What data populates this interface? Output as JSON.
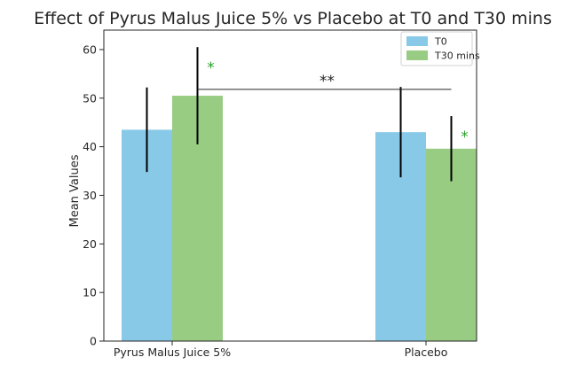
{
  "chart_data": {
    "type": "bar",
    "title": "Effect of Pyrus Malus Juice 5% vs Placebo at T0 and T30 mins",
    "xlabel": "",
    "ylabel": "Mean Values",
    "ylim": [
      0,
      64
    ],
    "yticks": [
      0,
      10,
      20,
      30,
      40,
      50,
      60
    ],
    "categories": [
      "Pyrus Malus Juice 5%",
      "Placebo"
    ],
    "series": [
      {
        "name": "T0",
        "color": "#89c9e8",
        "values": [
          43.5,
          43.0
        ],
        "errors": [
          8.7,
          9.3
        ]
      },
      {
        "name": "T30 mins",
        "color": "#98cc83",
        "values": [
          50.5,
          39.6
        ],
        "errors": [
          10.0,
          6.7
        ]
      }
    ],
    "legend": {
      "position": "top-right"
    },
    "annotations": {
      "significance_stars": [
        {
          "series": 1,
          "category": 0,
          "text": "*"
        },
        {
          "series": 1,
          "category": 1,
          "text": "*"
        }
      ],
      "comparison": {
        "text": "**",
        "y": 51.8
      }
    }
  }
}
